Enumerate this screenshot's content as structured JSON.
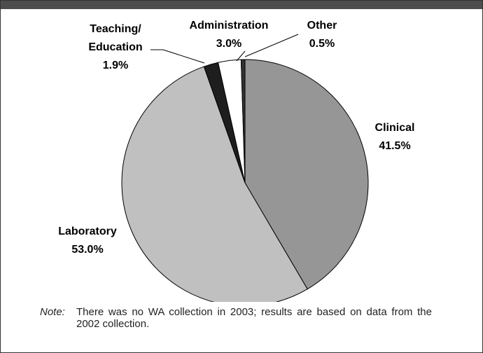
{
  "chart_data": {
    "type": "pie",
    "categories": [
      "Clinical",
      "Laboratory",
      "Teaching/\nEducation",
      "Administration",
      "Other"
    ],
    "values": [
      41.5,
      53.0,
      1.9,
      3.0,
      0.5
    ],
    "value_labels": [
      "41.5%",
      "53.0%",
      "1.9%",
      "3.0%",
      "0.5%"
    ],
    "colors": [
      "#969696",
      "#c0c0c0",
      "#1e1e1e",
      "#ffffff",
      "#333333"
    ],
    "start_angle": 0,
    "note_label": "Note:",
    "note": "There was no WA collection in 2003; results are based on data from the 2002 collection."
  }
}
